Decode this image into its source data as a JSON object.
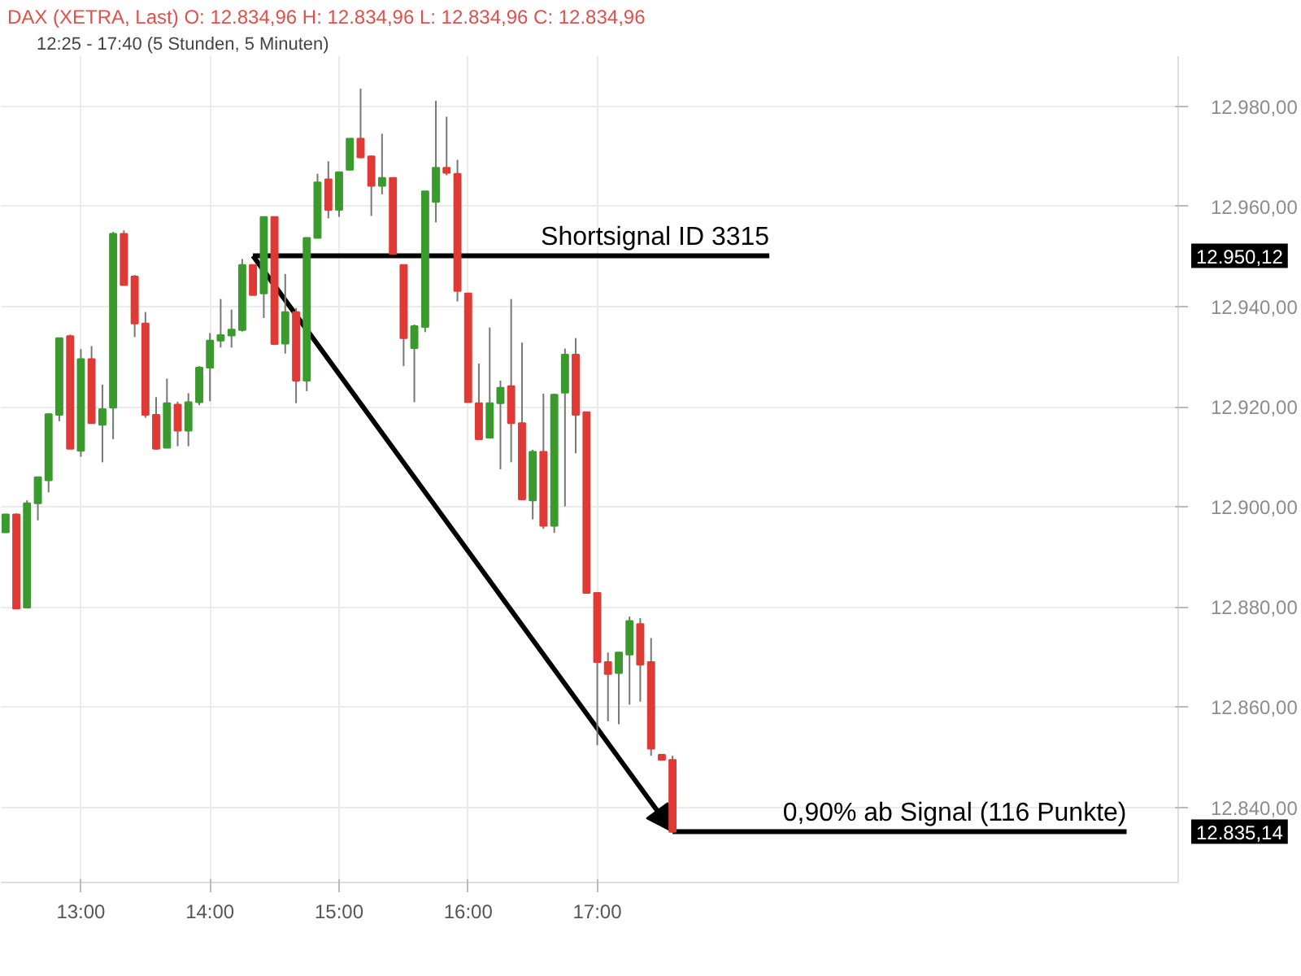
{
  "chart_data": {
    "type": "candlestick",
    "title": "DAX (XETRA, Last)  O: 12.834,96  H: 12.834,96  L: 12.834,96  C: 12.834,96",
    "subtitle": "12:25 - 17:40   (5 Stunden, 5 Minuten)",
    "x": [
      12.417,
      12.5,
      12.583,
      12.667,
      12.75,
      12.833,
      12.917,
      13,
      13.083,
      13.167,
      13.25,
      13.333,
      13.417,
      13.5,
      13.583,
      13.667,
      13.75,
      13.833,
      13.917,
      14,
      14.083,
      14.167,
      14.25,
      14.333,
      14.417,
      14.5,
      14.583,
      14.667,
      14.75,
      14.833,
      14.917,
      15,
      15.083,
      15.167,
      15.25,
      15.333,
      15.417,
      15.5,
      15.583,
      15.667,
      15.75,
      15.833,
      15.917,
      16,
      16.083,
      16.167,
      16.25,
      16.333,
      16.417,
      16.5,
      16.583,
      16.667,
      16.75,
      16.833,
      16.917,
      17,
      17.083,
      17.167,
      17.25,
      17.333,
      17.417,
      17.5,
      17.583
    ],
    "ohlc": [
      [
        12894.9,
        12898.5,
        12894.9,
        12898.5
      ],
      [
        12898.5,
        12898.7,
        12879.7,
        12879.7
      ],
      [
        12879.9,
        12901.3,
        12879.9,
        12900.7
      ],
      [
        12900.7,
        12905.9,
        12897.3,
        12905.9
      ],
      [
        12905.3,
        12918.7,
        12902.9,
        12918.5
      ],
      [
        12918.4,
        12933.7,
        12917.1,
        12933.7
      ],
      [
        12934.1,
        12934.4,
        12911.6,
        12911.6
      ],
      [
        12911.2,
        12931.5,
        12910.0,
        12929.5
      ],
      [
        12929.5,
        12932.1,
        12916.7,
        12916.7
      ],
      [
        12916.4,
        12924.4,
        12908.9,
        12919.5
      ],
      [
        12919.8,
        12954.9,
        12913.5,
        12954.5
      ],
      [
        12954.5,
        12955.2,
        12944.3,
        12944.3
      ],
      [
        12946.0,
        12946.3,
        12933.9,
        12936.6
      ],
      [
        12936.6,
        12938.9,
        12917.8,
        12918.4
      ],
      [
        12918.4,
        12921.9,
        12911.4,
        12911.6
      ],
      [
        12911.8,
        12925.6,
        12911.8,
        12920.7
      ],
      [
        12920.4,
        12921.0,
        12912.1,
        12915.2
      ],
      [
        12915.2,
        12922.7,
        12912.1,
        12920.9
      ],
      [
        12920.9,
        12928.1,
        12920.3,
        12927.8
      ],
      [
        12927.8,
        12934.7,
        12921.1,
        12933.2
      ],
      [
        12933.2,
        12941.5,
        12931.8,
        12934.3
      ],
      [
        12934.2,
        12939.4,
        12931.8,
        12935.4
      ],
      [
        12935.3,
        12949.5,
        12935.0,
        12948.3
      ],
      [
        12948.3,
        12948.3,
        12942.3,
        12942.3
      ],
      [
        12942.6,
        12957.9,
        12937.7,
        12957.9
      ],
      [
        12957.9,
        12957.9,
        12932.3,
        12932.5
      ],
      [
        12932.6,
        12946.5,
        12930.6,
        12938.9
      ],
      [
        12938.9,
        12939.7,
        12920.7,
        12925.2
      ],
      [
        12925.2,
        12953.7,
        12923.1,
        12953.7
      ],
      [
        12953.7,
        12966.5,
        12953.7,
        12964.8
      ],
      [
        12965.4,
        12969.0,
        12957.6,
        12959.3
      ],
      [
        12959.3,
        12966.8,
        12957.9,
        12966.8
      ],
      [
        12967.3,
        12973.5,
        12967.3,
        12973.5
      ],
      [
        12973.5,
        12983.5,
        12969.6,
        12969.8
      ],
      [
        12970.0,
        12970.2,
        12958.1,
        12964.1
      ],
      [
        12964.1,
        12974.5,
        12962.4,
        12965.7
      ],
      [
        12965.7,
        12965.7,
        12950.5,
        12950.5
      ],
      [
        12948.3,
        12948.3,
        12928.1,
        12933.7
      ],
      [
        12931.7,
        12936.4,
        12920.9,
        12936.1
      ],
      [
        12935.9,
        12963.0,
        12934.9,
        12963.0
      ],
      [
        12960.9,
        12981.1,
        12956.8,
        12967.7
      ],
      [
        12967.7,
        12977.9,
        12966.2,
        12966.7
      ],
      [
        12966.5,
        12969.3,
        12941.0,
        12943.1
      ],
      [
        12942.6,
        12942.6,
        12920.9,
        12920.9
      ],
      [
        12920.7,
        12928.6,
        12913.5,
        12913.5
      ],
      [
        12913.8,
        12935.8,
        12913.8,
        12920.7
      ],
      [
        12920.7,
        12925.2,
        12907.5,
        12923.8
      ],
      [
        12924.1,
        12941.5,
        12908.9,
        12916.7
      ],
      [
        12916.7,
        12932.8,
        12901.5,
        12901.5
      ],
      [
        12901.3,
        12911.4,
        12897.5,
        12911.0
      ],
      [
        12911.0,
        12922.6,
        12895.6,
        12896.2
      ],
      [
        12896.2,
        12922.6,
        12894.8,
        12922.4
      ],
      [
        12922.8,
        12931.6,
        12900.1,
        12930.4
      ],
      [
        12930.4,
        12933.7,
        12910.7,
        12918.4
      ],
      [
        12918.9,
        12918.9,
        12882.8,
        12882.8
      ],
      [
        12882.8,
        12882.8,
        12852.4,
        12869.0
      ],
      [
        12869.0,
        12870.9,
        12857.2,
        12866.6
      ],
      [
        12866.8,
        12870.9,
        12856.6,
        12870.9
      ],
      [
        12870.5,
        12878.1,
        12860.5,
        12877.2
      ],
      [
        12876.6,
        12877.8,
        12861.1,
        12868.5
      ],
      [
        12869.0,
        12873.8,
        12850.3,
        12851.7
      ],
      [
        12850.5,
        12850.5,
        12849.5,
        12849.5
      ],
      [
        12849.5,
        12850.3,
        12835.1,
        12835.1
      ]
    ],
    "colors": [
      "#3a9a2e",
      "#e03a36",
      "#3a9a2e",
      "#3a9a2e",
      "#3a9a2e",
      "#3a9a2e",
      "#e03a36",
      "#3a9a2e",
      "#e03a36",
      "#3a9a2e",
      "#3a9a2e",
      "#e03a36",
      "#e03a36",
      "#e03a36",
      "#e03a36",
      "#3a9a2e",
      "#e03a36",
      "#3a9a2e",
      "#3a9a2e",
      "#3a9a2e",
      "#3a9a2e",
      "#3a9a2e",
      "#3a9a2e",
      "#e03a36",
      "#3a9a2e",
      "#e03a36",
      "#3a9a2e",
      "#e03a36",
      "#3a9a2e",
      "#3a9a2e",
      "#e03a36",
      "#3a9a2e",
      "#3a9a2e",
      "#e03a36",
      "#e03a36",
      "#3a9a2e",
      "#e03a36",
      "#e03a36",
      "#3a9a2e",
      "#3a9a2e",
      "#3a9a2e",
      "#e03a36",
      "#e03a36",
      "#e03a36",
      "#e03a36",
      "#3a9a2e",
      "#3a9a2e",
      "#e03a36",
      "#e03a36",
      "#3a9a2e",
      "#e03a36",
      "#3a9a2e",
      "#3a9a2e",
      "#e03a36",
      "#e03a36",
      "#e03a36",
      "#e03a36",
      "#3a9a2e",
      "#3a9a2e",
      "#e03a36",
      "#e03a36",
      "#e03a36",
      "#e03a36"
    ],
    "series": [
      {
        "type": "line",
        "x": [
          14.333,
          18.333
        ],
        "values": [
          12950.12,
          12950.12
        ],
        "color": "#000000"
      },
      {
        "type": "line",
        "x": [
          17.583,
          21.1
        ],
        "values": [
          12835.14,
          12835.14
        ],
        "color": "#000000"
      }
    ],
    "annotations": [
      {
        "text": "Shortsignal ID 3315",
        "x": 18.333,
        "y": 12950.12
      },
      {
        "text": "0,90% ab Signal (116 Punkte)",
        "x": 21.1,
        "y": 12835.14
      },
      "12.950,12",
      "12.835,14"
    ],
    "xlim": [
      12.38,
      21.5
    ],
    "ylim": [
      12825,
      12990
    ],
    "xticks": [
      {
        "value": 13,
        "label": "13:00"
      },
      {
        "value": 14,
        "label": "14:00"
      },
      {
        "value": 15,
        "label": "15:00"
      },
      {
        "value": 16,
        "label": "16:00"
      },
      {
        "value": 17,
        "label": "17:00"
      }
    ],
    "yticks": [
      {
        "value": 12840,
        "label": "12.840,00"
      },
      {
        "value": 12860,
        "label": "12.860,00"
      },
      {
        "value": 12880,
        "label": "12.880,00"
      },
      {
        "value": 12900,
        "label": "12.900,00"
      },
      {
        "value": 12920,
        "label": "12.920,00"
      },
      {
        "value": 12940,
        "label": "12.940,00"
      },
      {
        "value": 12960,
        "label": "12.960,00"
      },
      {
        "value": 12980,
        "label": "12.980,00"
      }
    ],
    "grid": true
  }
}
